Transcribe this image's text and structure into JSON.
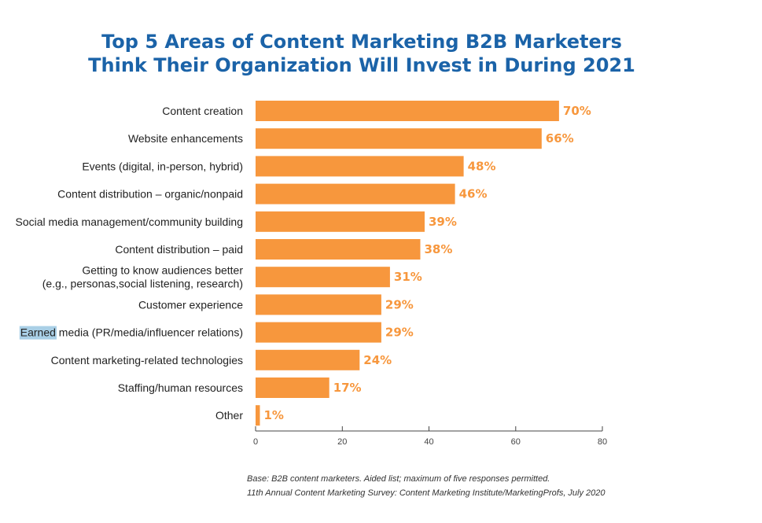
{
  "title": {
    "line1": "Top 5 Areas of Content Marketing B2B Marketers",
    "line2": "Think Their Organization Will Invest in During 2021"
  },
  "colors": {
    "bar": "#f7973d",
    "value_label": "#f7973d",
    "title": "#1b63a8",
    "axis": "#444444",
    "highlight": "#a9cfe6"
  },
  "chart_data": {
    "type": "bar",
    "orientation": "horizontal",
    "title": "Top 5 Areas of Content Marketing B2B Marketers Think Their Organization Will Invest in During 2021",
    "categories": [
      "Content creation",
      "Website enhancements",
      "Events (digital, in-person, hybrid)",
      "Content distribution – organic/nonpaid",
      "Social media management/community building",
      "Content distribution – paid",
      "Getting to know audiences better\n(e.g., personas,social listening, research)",
      "Customer experience",
      "Earned media (PR/media/influencer relations)",
      "Content marketing-related technologies",
      "Staffing/human resources",
      "Other"
    ],
    "values": [
      70,
      66,
      48,
      46,
      39,
      38,
      31,
      29,
      29,
      24,
      17,
      1
    ],
    "value_labels": [
      "70%",
      "66%",
      "48%",
      "46%",
      "39%",
      "38%",
      "31%",
      "29%",
      "29%",
      "24%",
      "17%",
      "1%"
    ],
    "xlim": [
      0,
      80
    ],
    "xticks": [
      0,
      20,
      40,
      60,
      80
    ],
    "xlabel": "",
    "ylabel": "",
    "grid": false,
    "legend": "none",
    "highlighted_word": "Earned"
  },
  "footnote": {
    "line1": "Base: B2B content marketers. Aided list; maximum of five responses permitted.",
    "line2": "11th Annual Content Marketing Survey: Content Marketing Institute/MarketingProfs, July 2020"
  }
}
